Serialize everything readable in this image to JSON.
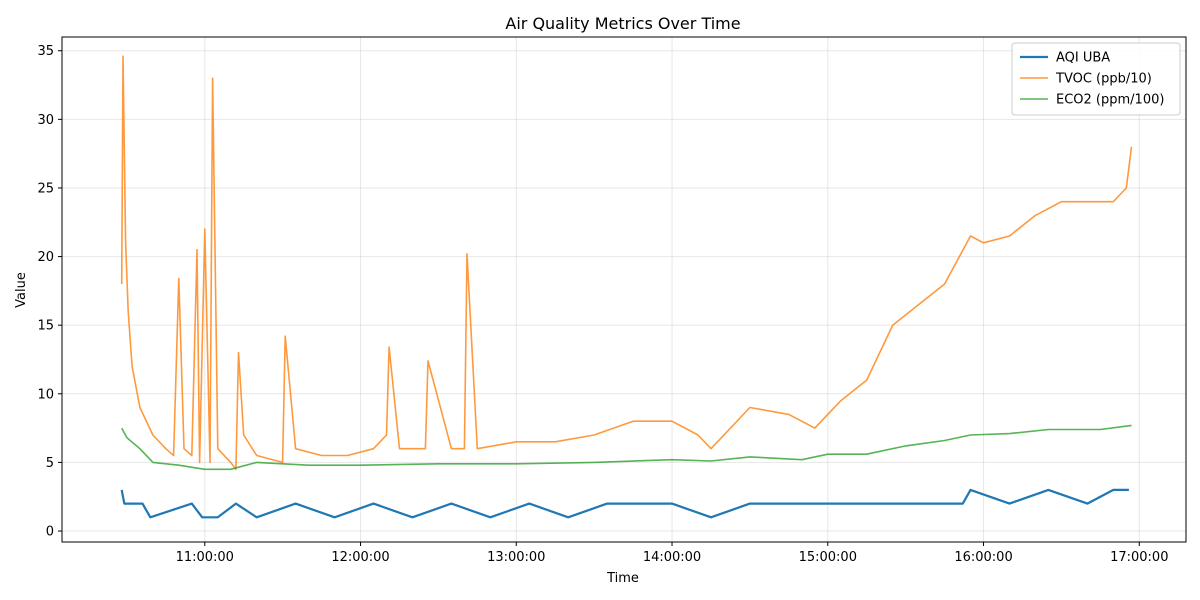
{
  "chart_data": {
    "type": "line",
    "title": "Air Quality Metrics Over Time",
    "xlabel": "Time",
    "ylabel": "Value",
    "xlim": [
      "10:05:00",
      "17:18:00"
    ],
    "ylim": [
      -0.8,
      36.0
    ],
    "x_ticks": [
      "11:00:00",
      "12:00:00",
      "13:00:00",
      "14:00:00",
      "15:00:00",
      "16:00:00",
      "17:00:00"
    ],
    "y_ticks": [
      0,
      5,
      10,
      15,
      20,
      25,
      30,
      35
    ],
    "grid": true,
    "legend_position": "top-right",
    "series": [
      {
        "name": "AQI UBA",
        "color": "#1f77b4",
        "x": [
          "10:28:00",
          "10:29:00",
          "10:36:00",
          "10:39:00",
          "10:55:00",
          "10:59:00",
          "11:05:00",
          "11:12:00",
          "11:20:00",
          "11:35:00",
          "11:50:00",
          "12:05:00",
          "12:20:00",
          "12:35:00",
          "12:50:00",
          "13:05:00",
          "13:20:00",
          "13:35:00",
          "13:45:00",
          "14:00:00",
          "14:15:00",
          "14:30:00",
          "14:45:00",
          "15:00:00",
          "15:20:00",
          "15:40:00",
          "15:52:00",
          "15:55:00",
          "16:10:00",
          "16:25:00",
          "16:40:00",
          "16:50:00",
          "16:56:00"
        ],
        "y": [
          3,
          2,
          2,
          1,
          2,
          1,
          1,
          2,
          1,
          2,
          1,
          2,
          1,
          2,
          1,
          2,
          1,
          2,
          2,
          2,
          1,
          2,
          2,
          2,
          2,
          2,
          2,
          3,
          2,
          3,
          2,
          3,
          3
        ]
      },
      {
        "name": "TVOC (ppb/10)",
        "color": "#ff7f0e",
        "x": [
          "10:28:00",
          "10:28:30",
          "10:29:30",
          "10:30:30",
          "10:32:00",
          "10:35:00",
          "10:40:00",
          "10:45:00",
          "10:48:00",
          "10:50:00",
          "10:52:00",
          "10:55:00",
          "10:57:00",
          "10:58:00",
          "11:00:00",
          "11:02:00",
          "11:03:00",
          "11:05:00",
          "11:10:00",
          "11:12:00",
          "11:13:00",
          "11:15:00",
          "11:20:00",
          "11:30:00",
          "11:31:00",
          "11:35:00",
          "11:45:00",
          "11:55:00",
          "12:05:00",
          "12:10:00",
          "12:11:00",
          "12:15:00",
          "12:25:00",
          "12:26:00",
          "12:35:00",
          "12:40:00",
          "12:41:00",
          "12:45:00",
          "13:00:00",
          "13:15:00",
          "13:30:00",
          "13:45:00",
          "14:00:00",
          "14:10:00",
          "14:15:00",
          "14:30:00",
          "14:45:00",
          "14:55:00",
          "15:05:00",
          "15:15:00",
          "15:25:00",
          "15:35:00",
          "15:45:00",
          "15:55:00",
          "16:00:00",
          "16:10:00",
          "16:20:00",
          "16:30:00",
          "16:40:00",
          "16:50:00",
          "16:55:00",
          "16:57:00"
        ],
        "y": [
          18,
          34.6,
          21,
          16,
          12,
          9,
          7,
          6,
          5.5,
          18.4,
          6,
          5.5,
          20.5,
          5,
          22,
          5,
          33,
          6,
          5,
          4.5,
          13,
          7,
          5.5,
          5,
          14.2,
          6,
          5.5,
          5.5,
          6,
          7,
          13.4,
          6,
          6,
          12.4,
          6,
          6,
          20.2,
          6,
          6.5,
          6.5,
          7,
          8,
          8,
          7,
          6,
          9,
          8.5,
          7.5,
          9.5,
          11,
          15,
          16.5,
          18,
          21.5,
          21,
          21.5,
          23,
          24,
          24,
          24,
          25,
          28
        ]
      },
      {
        "name": "ECO2 (ppm/100)",
        "color": "#2ca02c",
        "x": [
          "10:28:00",
          "10:30:00",
          "10:35:00",
          "10:40:00",
          "10:50:00",
          "11:00:00",
          "11:10:00",
          "11:20:00",
          "11:40:00",
          "12:00:00",
          "12:30:00",
          "13:00:00",
          "13:30:00",
          "14:00:00",
          "14:15:00",
          "14:30:00",
          "14:50:00",
          "15:00:00",
          "15:15:00",
          "15:30:00",
          "15:45:00",
          "15:55:00",
          "16:10:00",
          "16:25:00",
          "16:45:00",
          "16:57:00"
        ],
        "y": [
          7.5,
          6.8,
          6,
          5,
          4.8,
          4.5,
          4.5,
          5,
          4.8,
          4.8,
          4.9,
          4.9,
          5,
          5.2,
          5.1,
          5.4,
          5.2,
          5.6,
          5.6,
          6.2,
          6.6,
          7,
          7.1,
          7.4,
          7.4,
          7.7
        ]
      }
    ]
  }
}
